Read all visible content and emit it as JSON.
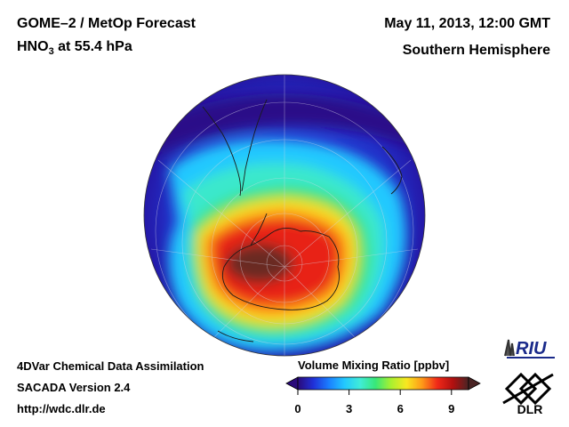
{
  "header": {
    "title_prefix": "GOME–2 / MetOp Forecast",
    "species_main": "HNO",
    "species_sub": "3",
    "species_suffix": " at 55.4 hPa",
    "datetime": "May 11, 2013, 12:00 GMT",
    "hemisphere": "Southern Hemisphere"
  },
  "footer": {
    "line1": "4DVar Chemical Data Assimilation",
    "line2": "SACADA Version 2.4",
    "line3": "http://wdc.dlr.de"
  },
  "colorbar": {
    "title": "Volume Mixing Ratio [ppbv]",
    "min": 0,
    "max": 10,
    "ticks": [
      "0",
      "3",
      "6",
      "9"
    ],
    "tick_values": [
      0,
      3,
      6,
      9
    ],
    "colors": [
      "#2a0a7a",
      "#2030d8",
      "#1a7fff",
      "#22c8ff",
      "#40ecd8",
      "#38e878",
      "#a8f030",
      "#f8e820",
      "#ff9a18",
      "#f02818",
      "#b01010",
      "#4a2424"
    ]
  },
  "map": {
    "projection": "orthographic-south-pole",
    "field": "HNO3 volume mixing ratio",
    "core_value_ppbv": 9.5,
    "ring_value_ppbv": 7.5,
    "background_value_ppbv": 1.0
  },
  "logos": {
    "riu": "RIU",
    "dlr": "DLR"
  }
}
